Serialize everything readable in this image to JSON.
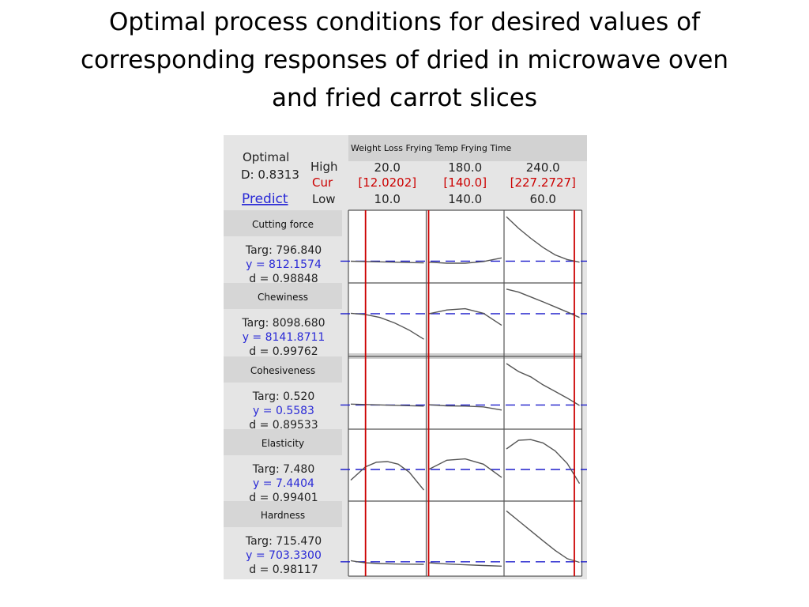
{
  "title_lines": [
    "Optimal process conditions for desired values of",
    "corresponding responses of dried in microwave oven",
    "and fried carrot slices"
  ],
  "chart_data": {
    "type": "line",
    "header": {
      "optimal_label": "Optimal",
      "d_label": "D: 0.8313",
      "predict_label": "Predict",
      "high_label": "High",
      "cur_label": "Cur",
      "low_label": "Low"
    },
    "factor_header_text": "Weight Loss  Frying Temp   Frying Time",
    "factors": [
      {
        "name": "Weight Loss",
        "high": "20.0",
        "cur": "[12.0202]",
        "low": "10.0",
        "high_value": 20.0,
        "cur_value": 12.0202,
        "low_value": 10.0
      },
      {
        "name": "Frying Temp",
        "high": "180.0",
        "cur": "[140.0]",
        "low": "140.0",
        "high_value": 180.0,
        "cur_value": 140.0,
        "low_value": 140.0
      },
      {
        "name": "Frying Time",
        "high": "240.0",
        "cur": "[227.2727]",
        "low": "60.0",
        "high_value": 240.0,
        "cur_value": 227.2727,
        "low_value": 60.0
      }
    ],
    "responses": [
      {
        "name": "Cutting force",
        "targ": "Targ: 796.840",
        "y": "y = 812.1574",
        "d": "d = 0.98848",
        "y_value": 812.1574,
        "range": [
          700,
          1100
        ],
        "curves": [
          [
            [
              10,
              812
            ],
            [
              12,
              810
            ],
            [
              14,
              808
            ],
            [
              16,
              806
            ],
            [
              18,
              804
            ],
            [
              20,
              802
            ]
          ],
          [
            [
              140,
              806
            ],
            [
              150,
              800
            ],
            [
              160,
              800
            ],
            [
              170,
              810
            ],
            [
              180,
              832
            ]
          ],
          [
            [
              60,
              1080
            ],
            [
              90,
              1010
            ],
            [
              120,
              950
            ],
            [
              150,
              895
            ],
            [
              180,
              850
            ],
            [
              210,
              822
            ],
            [
              240,
              806
            ]
          ]
        ]
      },
      {
        "name": "Chewiness",
        "targ": "Targ: 8098.680",
        "y": "y = 8141.8711",
        "d": "d = 0.99762",
        "y_value": 8141.8711,
        "range": [
          7500,
          8600
        ],
        "curves": [
          [
            [
              10,
              8150
            ],
            [
              12,
              8130
            ],
            [
              14,
              8080
            ],
            [
              16,
              7990
            ],
            [
              18,
              7870
            ],
            [
              20,
              7720
            ]
          ],
          [
            [
              140,
              8140
            ],
            [
              150,
              8205
            ],
            [
              160,
              8225
            ],
            [
              170,
              8150
            ],
            [
              180,
              7950
            ]
          ],
          [
            [
              60,
              8550
            ],
            [
              90,
              8500
            ],
            [
              120,
              8420
            ],
            [
              150,
              8340
            ],
            [
              180,
              8255
            ],
            [
              210,
              8170
            ],
            [
              240,
              8080
            ]
          ]
        ]
      },
      {
        "name": "Cohesiveness",
        "targ": "Targ: 0.520",
        "y": "y = 0.5583",
        "d": "d = 0.89533",
        "y_value": 0.5583,
        "range": [
          0.4,
          0.9
        ],
        "curves": [
          [
            [
              10,
              0.565
            ],
            [
              13,
              0.56
            ],
            [
              16,
              0.556
            ],
            [
              20,
              0.55
            ]
          ],
          [
            [
              140,
              0.56
            ],
            [
              150,
              0.552
            ],
            [
              160,
              0.55
            ],
            [
              170,
              0.544
            ],
            [
              180,
              0.52
            ]
          ],
          [
            [
              60,
              0.87
            ],
            [
              90,
              0.81
            ],
            [
              120,
              0.77
            ],
            [
              150,
              0.71
            ],
            [
              180,
              0.66
            ],
            [
              210,
              0.61
            ],
            [
              240,
              0.555
            ]
          ]
        ]
      },
      {
        "name": "Elasticity",
        "targ": "Targ: 7.480",
        "y": "y = 7.4404",
        "d": "d = 0.99401",
        "y_value": 7.4404,
        "range": [
          7.0,
          8.0
        ],
        "curves": [
          [
            [
              10,
              7.28
            ],
            [
              12,
              7.48
            ],
            [
              13.5,
              7.55
            ],
            [
              15,
              7.56
            ],
            [
              16.5,
              7.52
            ],
            [
              18,
              7.4
            ],
            [
              20,
              7.13
            ]
          ],
          [
            [
              140,
              7.44
            ],
            [
              150,
              7.58
            ],
            [
              160,
              7.6
            ],
            [
              170,
              7.52
            ],
            [
              180,
              7.32
            ]
          ],
          [
            [
              60,
              7.75
            ],
            [
              90,
              7.88
            ],
            [
              120,
              7.89
            ],
            [
              150,
              7.84
            ],
            [
              180,
              7.72
            ],
            [
              210,
              7.53
            ],
            [
              240,
              7.23
            ]
          ]
        ]
      },
      {
        "name": "Hardness",
        "targ": "Targ: 715.470",
        "y": "y = 703.3300",
        "d": "d = 0.98117",
        "y_value": 703.33,
        "range": [
          650,
          1050
        ],
        "curves": [
          [
            [
              10,
              710
            ],
            [
              11,
              703
            ],
            [
              12,
              697
            ],
            [
              14,
              693
            ],
            [
              16,
              690
            ],
            [
              18,
              689
            ],
            [
              20,
              688
            ]
          ],
          [
            [
              140,
              697
            ],
            [
              150,
              690
            ],
            [
              160,
              685
            ],
            [
              170,
              681
            ],
            [
              180,
              677
            ]
          ],
          [
            [
              60,
              1010
            ],
            [
              90,
              950
            ],
            [
              120,
              890
            ],
            [
              150,
              830
            ],
            [
              180,
              772
            ],
            [
              210,
              722
            ],
            [
              240,
              700
            ]
          ]
        ]
      }
    ],
    "colors": {
      "cur_red": "#cc0000",
      "y_blue": "#2a2ad6",
      "target_dash": "#1e1ecc",
      "curve": "#555555",
      "panel_bg": "#e5e5e5"
    }
  }
}
